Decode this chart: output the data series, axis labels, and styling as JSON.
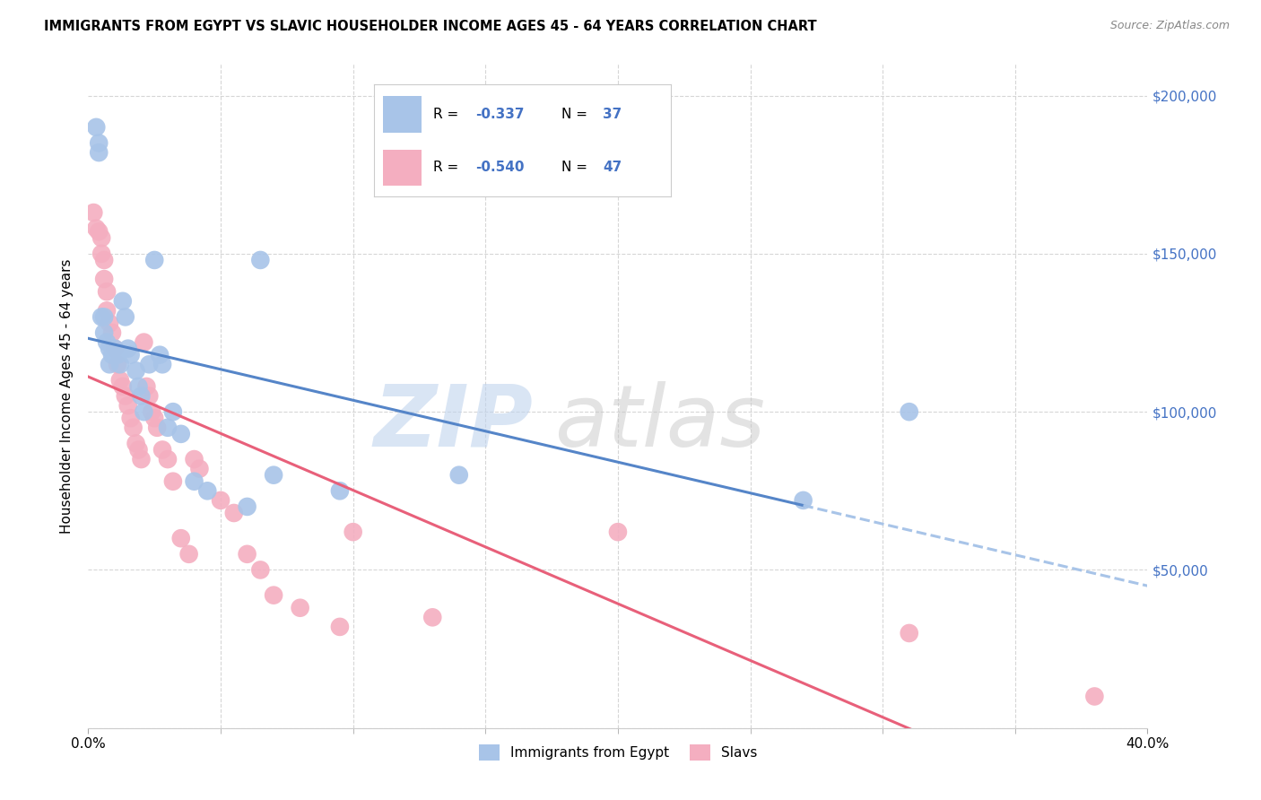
{
  "title": "IMMIGRANTS FROM EGYPT VS SLAVIC HOUSEHOLDER INCOME AGES 45 - 64 YEARS CORRELATION CHART",
  "source": "Source: ZipAtlas.com",
  "ylabel": "Householder Income Ages 45 - 64 years",
  "xlim": [
    0,
    0.4
  ],
  "ylim": [
    0,
    210000
  ],
  "yticks": [
    0,
    50000,
    100000,
    150000,
    200000
  ],
  "yticklabels": [
    "",
    "$50,000",
    "$100,000",
    "$150,000",
    "$200,000"
  ],
  "egypt_R": -0.337,
  "egypt_N": 37,
  "slavic_R": -0.54,
  "slavic_N": 47,
  "egypt_color": "#a8c4e8",
  "slavic_color": "#f4aec0",
  "egypt_line_color": "#5585c8",
  "slavic_line_color": "#e8607a",
  "dashed_line_color": "#a8c4e8",
  "legend_val_color": "#4472c4",
  "watermark_zip_color": "#c0d4ee",
  "watermark_atlas_color": "#c8c8c8",
  "egypt_x": [
    0.003,
    0.004,
    0.004,
    0.005,
    0.006,
    0.006,
    0.007,
    0.008,
    0.008,
    0.009,
    0.01,
    0.011,
    0.012,
    0.013,
    0.014,
    0.015,
    0.016,
    0.018,
    0.019,
    0.02,
    0.021,
    0.023,
    0.025,
    0.027,
    0.028,
    0.03,
    0.032,
    0.035,
    0.04,
    0.045,
    0.06,
    0.065,
    0.07,
    0.095,
    0.14,
    0.27,
    0.31
  ],
  "egypt_y": [
    190000,
    185000,
    182000,
    130000,
    130000,
    125000,
    122000,
    120000,
    115000,
    118000,
    120000,
    118000,
    115000,
    135000,
    130000,
    120000,
    118000,
    113000,
    108000,
    105000,
    100000,
    115000,
    148000,
    118000,
    115000,
    95000,
    100000,
    93000,
    78000,
    75000,
    70000,
    148000,
    80000,
    75000,
    80000,
    72000,
    100000
  ],
  "slavic_x": [
    0.002,
    0.003,
    0.004,
    0.005,
    0.005,
    0.006,
    0.006,
    0.007,
    0.007,
    0.008,
    0.009,
    0.01,
    0.011,
    0.012,
    0.013,
    0.014,
    0.015,
    0.016,
    0.017,
    0.018,
    0.019,
    0.02,
    0.021,
    0.022,
    0.023,
    0.024,
    0.025,
    0.026,
    0.028,
    0.03,
    0.032,
    0.035,
    0.038,
    0.04,
    0.042,
    0.05,
    0.055,
    0.06,
    0.065,
    0.07,
    0.08,
    0.095,
    0.1,
    0.13,
    0.2,
    0.31,
    0.38
  ],
  "slavic_y": [
    163000,
    158000,
    157000,
    155000,
    150000,
    148000,
    142000,
    138000,
    132000,
    128000,
    125000,
    120000,
    115000,
    110000,
    108000,
    105000,
    102000,
    98000,
    95000,
    90000,
    88000,
    85000,
    122000,
    108000,
    105000,
    100000,
    98000,
    95000,
    88000,
    85000,
    78000,
    60000,
    55000,
    85000,
    82000,
    72000,
    68000,
    55000,
    50000,
    42000,
    38000,
    32000,
    62000,
    35000,
    62000,
    30000,
    10000
  ],
  "egypt_line_x_end": 0.27,
  "minor_xticks": [
    0.05,
    0.1,
    0.15,
    0.2,
    0.25,
    0.3,
    0.35
  ]
}
